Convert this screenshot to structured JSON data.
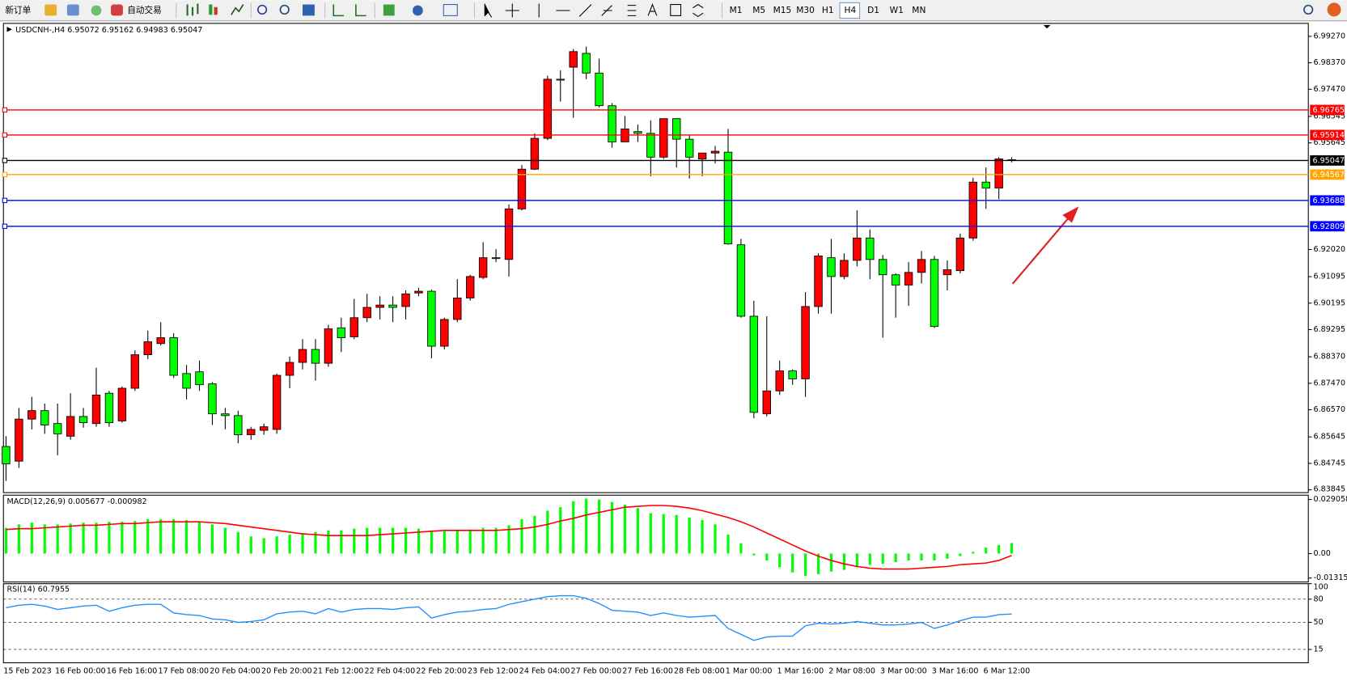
{
  "toolbar": {
    "buttons": [
      "新订单",
      "自动交易"
    ],
    "timeframes": [
      "M1",
      "M5",
      "M15",
      "M30",
      "H1",
      "H4",
      "D1",
      "W1",
      "MN"
    ]
  },
  "chart_data": [
    {
      "type": "candlestick",
      "title": "USDCNH-,H4  6.95072 6.95162 6.94983 6.95047",
      "categories": [
        "15 Feb 2023",
        null,
        null,
        null,
        "16 Feb 00:00",
        null,
        null,
        null,
        "16 Feb 16:00",
        null,
        null,
        null,
        "17 Feb 08:00",
        null,
        null,
        null,
        "20 Feb 04:00",
        null,
        null,
        null,
        "20 Feb 20:00",
        null,
        null,
        null,
        "21 Feb 12:00",
        null,
        null,
        null,
        "22 Feb 04:00",
        null,
        null,
        null,
        "22 Feb 20:00",
        null,
        null,
        null,
        "23 Feb 12:00",
        null,
        null,
        null,
        "24 Feb 04:00",
        null,
        null,
        null,
        "27 Feb 00:00",
        null,
        null,
        null,
        "27 Feb 16:00",
        null,
        null,
        null,
        "28 Feb 08:00",
        null,
        null,
        null,
        "1 Mar 00:00",
        null,
        null,
        null,
        "1 Mar 16:00",
        null,
        null,
        null,
        "2 Mar 08:00",
        null,
        null,
        null,
        "3 Mar 00:00",
        null,
        null,
        null,
        "3 Mar 16:00",
        null,
        null,
        null,
        "6 Mar 12:00",
        null,
        null
      ],
      "open": [
        6.8532,
        6.8482,
        6.8625,
        6.8654,
        6.861,
        6.8567,
        6.8634,
        6.861,
        6.8713,
        6.8619,
        6.873,
        6.8844,
        6.8882,
        6.8902,
        6.878,
        6.8786,
        6.8745,
        6.8643,
        6.8637,
        6.8572,
        6.8587,
        6.859,
        6.8774,
        6.8818,
        6.8862,
        6.8815,
        6.8935,
        6.8905,
        6.897,
        6.9005,
        6.9013,
        6.9008,
        6.9054,
        6.906,
        6.8873,
        6.8964,
        6.9037,
        6.9107,
        6.9174,
        6.9168,
        6.934,
        6.9475,
        6.958,
        6.9781,
        6.9822,
        6.9869,
        6.9802,
        6.9691,
        6.9568,
        6.9603,
        6.9597,
        6.9516,
        6.9647,
        6.9577,
        6.951,
        6.953,
        6.9533,
        6.9218,
        6.8975,
        6.8643,
        6.8721,
        6.8789,
        6.8762,
        6.9008,
        6.9174,
        6.911,
        6.9165,
        6.9241,
        6.9168,
        6.9116,
        6.9081,
        6.9124,
        6.9168,
        6.9116,
        6.913,
        6.9241,
        6.9431,
        6.9411,
        6.95072
      ],
      "high": [
        6.8567,
        6.8663,
        6.8701,
        6.8678,
        6.8678,
        6.8713,
        6.8663,
        6.88,
        6.8721,
        6.8736,
        6.8859,
        6.8926,
        6.8955,
        6.8917,
        6.8809,
        6.8824,
        6.8751,
        6.8663,
        6.8654,
        6.8599,
        6.861,
        6.878,
        6.8838,
        6.8897,
        6.8897,
        6.8946,
        6.897,
        6.9034,
        6.9051,
        6.9043,
        6.9043,
        6.9063,
        6.9072,
        6.9066,
        6.897,
        6.9101,
        6.9116,
        6.9227,
        6.9203,
        6.9355,
        6.9489,
        6.9597,
        6.9793,
        6.9811,
        6.9884,
        6.9892,
        6.9851,
        6.97,
        6.9656,
        6.9627,
        6.9641,
        6.9647,
        6.9647,
        6.9592,
        6.953,
        6.9554,
        6.9612,
        6.9238,
        6.9028,
        6.8975,
        6.8824,
        6.8794,
        6.9057,
        6.9189,
        6.9238,
        6.9189,
        6.9335,
        6.927,
        6.9183,
        6.9121,
        6.9159,
        6.9197,
        6.918,
        6.9165,
        6.9256,
        6.9446,
        6.9481,
        6.9516,
        6.95162
      ],
      "low": [
        6.8415,
        6.8459,
        6.859,
        6.8575,
        6.8502,
        6.8555,
        6.8596,
        6.8599,
        6.8599,
        6.8613,
        6.8721,
        6.8829,
        6.8876,
        6.8765,
        6.8692,
        6.8721,
        6.8605,
        6.859,
        6.8543,
        6.8555,
        6.8572,
        6.8575,
        6.873,
        6.8794,
        6.8756,
        6.8803,
        6.8853,
        6.8897,
        6.8955,
        6.8964,
        6.8955,
        6.8964,
        6.9043,
        6.8832,
        6.8862,
        6.8955,
        6.9028,
        6.9101,
        6.9159,
        6.911,
        6.9335,
        6.9472,
        6.9574,
        6.9705,
        6.965,
        6.9781,
        6.9685,
        6.9548,
        6.9568,
        6.9568,
        6.9451,
        6.951,
        6.9481,
        6.9443,
        6.9451,
        6.9495,
        6.9218,
        6.897,
        6.8628,
        6.8634,
        6.8707,
        6.8742,
        6.8701,
        6.8984,
        6.8984,
        6.9101,
        6.9145,
        6.9101,
        6.8902,
        6.897,
        6.901,
        6.9086,
        6.8935,
        6.9063,
        6.9121,
        6.9232,
        6.934,
        6.9373,
        6.94983
      ],
      "close": [
        6.8473,
        6.8625,
        6.8654,
        6.8605,
        6.8575,
        6.8634,
        6.8613,
        6.8707,
        6.8613,
        6.873,
        6.8844,
        6.8888,
        6.8902,
        6.8774,
        6.873,
        6.8742,
        6.8643,
        6.8637,
        6.8572,
        6.859,
        6.8599,
        6.8774,
        6.8818,
        6.8862,
        6.8815,
        6.8932,
        6.8902,
        6.897,
        6.9005,
        6.9013,
        6.9005,
        6.9051,
        6.906,
        6.8873,
        6.8964,
        6.9037,
        6.911,
        6.9174,
        6.9171,
        6.934,
        6.9475,
        6.958,
        6.9781,
        6.9778,
        6.9875,
        6.9802,
        6.9691,
        6.9568,
        6.9612,
        6.9597,
        6.9516,
        6.9647,
        6.9577,
        6.9516,
        6.953,
        6.9536,
        6.9221,
        6.8975,
        6.8648,
        6.8721,
        6.8789,
        6.8762,
        6.9008,
        6.918,
        6.911,
        6.9165,
        6.9241,
        6.9168,
        6.9116,
        6.9081,
        6.9124,
        6.9168,
        6.894,
        6.9133,
        6.9241,
        6.9431,
        6.9411,
        6.951,
        6.95047
      ],
      "up_color": "#ff0000",
      "down_color": "#00ff00",
      "ylim": [
        6.8378,
        6.9968
      ],
      "yticks": [
        {
          "value": 6.9927,
          "label": "6.99270"
        },
        {
          "value": 6.9837,
          "label": "6.98370"
        },
        {
          "value": 6.9747,
          "label": "6.97470"
        },
        6.96545,
        6.95645,
        {
          "value": 6.9202,
          "label": "6.92020"
        },
        6.91095,
        6.90195,
        6.89295,
        {
          "value": 6.8837,
          "label": "6.88370"
        },
        {
          "value": 6.8747,
          "label": "6.87470"
        },
        {
          "value": 6.8657,
          "label": "6.86570"
        },
        6.85645,
        6.84745,
        6.83845
      ],
      "hlines": [
        {
          "value": 6.96765,
          "color": "#ff0000"
        },
        {
          "value": 6.95914,
          "color": "#ff0000"
        },
        {
          "value": 6.95047,
          "color": "#000000"
        },
        {
          "value": 6.94567,
          "color": "#ffa500"
        },
        {
          "value": 6.93688,
          "color": "#0000ff"
        },
        {
          "value": 6.92809,
          "color": "#0000ff"
        }
      ]
    },
    {
      "type": "macd",
      "title": "MACD(12,26,9) 0.005677 -0.000982",
      "values": [
        0.01383,
        0.01567,
        0.0166,
        0.01567,
        0.01567,
        0.01614,
        0.0166,
        0.0166,
        0.01706,
        0.01706,
        0.01752,
        0.01844,
        0.01844,
        0.01844,
        0.01798,
        0.01706,
        0.01567,
        0.01383,
        0.01153,
        0.00922,
        0.0083,
        0.00922,
        0.01014,
        0.01106,
        0.01153,
        0.01245,
        0.01245,
        0.01337,
        0.01383,
        0.01383,
        0.01383,
        0.01383,
        0.01337,
        0.01245,
        0.01199,
        0.01245,
        0.01291,
        0.01383,
        0.01383,
        0.01521,
        0.01844,
        0.02028,
        0.02305,
        0.02489,
        0.02812,
        0.0295,
        0.02904,
        0.02766,
        0.02628,
        0.02443,
        0.02167,
        0.02121,
        0.02075,
        0.01936,
        0.01798,
        0.01567,
        0.01014,
        0.00553,
        -0.00092,
        -0.00369,
        -0.00738,
        -0.01014,
        -0.01199,
        -0.01106,
        -0.00968,
        -0.00876,
        -0.00738,
        -0.00599,
        -0.00553,
        -0.00461,
        -0.00369,
        -0.00369,
        -0.00369,
        -0.00277,
        -0.00138,
        0.00092,
        0.00323,
        0.00461,
        0.005677
      ],
      "color": "#00ff00",
      "signal": [
        0.01291,
        0.01337,
        0.01337,
        0.01383,
        0.01429,
        0.01475,
        0.01521,
        0.01521,
        0.01567,
        0.01614,
        0.01614,
        0.0166,
        0.01706,
        0.01706,
        0.01706,
        0.01706,
        0.0166,
        0.01614,
        0.01521,
        0.01429,
        0.01337,
        0.01245,
        0.01153,
        0.0106,
        0.01014,
        0.00968,
        0.00968,
        0.00968,
        0.00968,
        0.01014,
        0.0106,
        0.01106,
        0.01153,
        0.01199,
        0.01245,
        0.01245,
        0.01245,
        0.01245,
        0.01245,
        0.01291,
        0.01337,
        0.01429,
        0.01567,
        0.01752,
        0.0189,
        0.02075,
        0.02213,
        0.02351,
        0.02489,
        0.02536,
        0.02582,
        0.02582,
        0.02536,
        0.02443,
        0.02305,
        0.02121,
        0.01936,
        0.01706,
        0.01429,
        0.01106,
        0.00784,
        0.00461,
        0.00138,
        -0.00138,
        -0.00369,
        -0.00553,
        -0.00692,
        -0.00784,
        -0.0083,
        -0.0083,
        -0.0083,
        -0.00784,
        -0.00738,
        -0.00692,
        -0.00599,
        -0.00553,
        -0.00507,
        -0.00369,
        -0.000982
      ],
      "signal_color": "#ff0000",
      "ylim": [
        -0.0148,
        0.0309
      ],
      "yticks": [
        0.029058,
        {
          "value": 0,
          "label": "0.00"
        },
        -0.013154
      ]
    },
    {
      "type": "line",
      "title": "RSI(14) 60.7955",
      "values": [
        68.9,
        72.2,
        73.3,
        71.1,
        66.7,
        68.9,
        71.1,
        72.2,
        64.4,
        68.9,
        72.2,
        73.3,
        73.3,
        62.2,
        60.0,
        58.9,
        54.4,
        53.3,
        50.0,
        51.1,
        53.3,
        61.1,
        63.3,
        64.4,
        61.1,
        67.8,
        63.3,
        66.7,
        67.8,
        67.8,
        66.7,
        68.9,
        70.0,
        55.6,
        60.0,
        63.3,
        64.4,
        66.7,
        67.8,
        73.3,
        76.7,
        80.0,
        83.3,
        84.4,
        84.4,
        81.1,
        74.4,
        65.6,
        64.4,
        63.3,
        58.9,
        62.2,
        58.9,
        56.7,
        57.8,
        58.9,
        42.2,
        34.4,
        26.7,
        31.1,
        32.2,
        32.2,
        45.6,
        48.9,
        47.8,
        48.9,
        51.1,
        48.9,
        46.7,
        46.7,
        47.8,
        50.0,
        42.2,
        46.7,
        52.2,
        56.7,
        56.7,
        60.0,
        60.7955
      ],
      "color": "#1e90ff",
      "ylim": [
        0,
        100
      ],
      "yticks": [
        100,
        80,
        50,
        15
      ],
      "grid": true
    }
  ]
}
